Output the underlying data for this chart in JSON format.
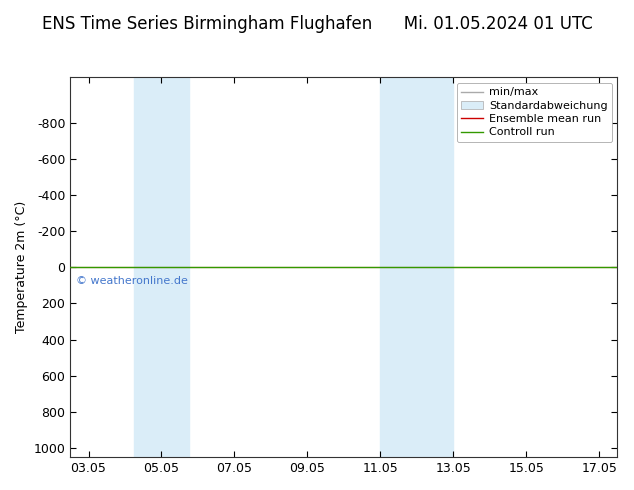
{
  "title_left": "ENS Time Series Birmingham Flughafen",
  "title_right": "Mi. 01.05.2024 01 UTC",
  "ylabel": "Temperature 2m (°C)",
  "ylim": [
    -1050,
    1050
  ],
  "yticks": [
    -800,
    -600,
    -400,
    -200,
    0,
    200,
    400,
    600,
    800,
    1000
  ],
  "xtick_labels": [
    "03.05",
    "05.05",
    "07.05",
    "09.05",
    "11.05",
    "13.05",
    "15.05",
    "17.05"
  ],
  "xtick_positions": [
    3,
    5,
    7,
    9,
    11,
    13,
    15,
    17
  ],
  "xlim": [
    2.5,
    17.5
  ],
  "shaded_bands": [
    {
      "x_start": 4.25,
      "x_end": 5.0,
      "color": "#daedf8"
    },
    {
      "x_start": 5.0,
      "x_end": 5.75,
      "color": "#daedf8"
    },
    {
      "x_start": 11.0,
      "x_end": 11.75,
      "color": "#daedf8"
    },
    {
      "x_start": 11.75,
      "x_end": 13.0,
      "color": "#daedf8"
    }
  ],
  "green_line_y": 0,
  "red_line_y": 0,
  "watermark": "© weatheronline.de",
  "watermark_color": "#4477cc",
  "background_color": "#ffffff",
  "plot_bg_color": "#ffffff",
  "legend_entries": [
    "min/max",
    "Standardabweichung",
    "Ensemble mean run",
    "Controll run"
  ],
  "green_color": "#339900",
  "red_color": "#cc0000",
  "title_fontsize": 12,
  "ylabel_fontsize": 9,
  "tick_fontsize": 9,
  "legend_fontsize": 8
}
